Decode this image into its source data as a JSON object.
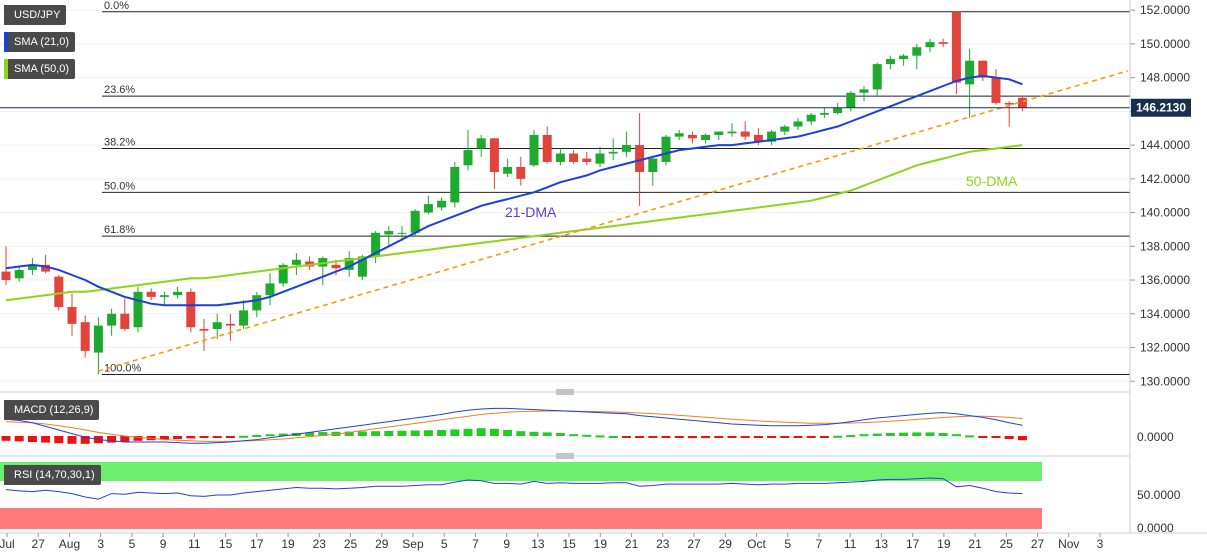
{
  "legend": {
    "symbol": "USD/JPY",
    "sma21": "SMA (21,0)",
    "sma50": "SMA (50,0)",
    "macd": "MACD (12,26,9)",
    "rsi": "RSI (14,70,30,1)"
  },
  "colors": {
    "bull": "#1eaa2e",
    "bear": "#e0443c",
    "sma21": "#1f3fdc",
    "sma50": "#8fd41a",
    "trend": "#f39c12",
    "macd_line": "#2040e0",
    "signal_line": "#f08020",
    "hist_pos": "#22cc22",
    "hist_neg": "#ee1111",
    "rsi_line": "#2040e0",
    "rsi_over": "#6cf06c",
    "rsi_under": "#ff7b7b"
  },
  "chart_data": {
    "type": "candlestick",
    "symbol": "USD/JPY",
    "price_axis": {
      "ylim": [
        129.6,
        152.6
      ],
      "ticks": [
        "152.0000",
        "150.0000",
        "148.0000",
        "146.0000",
        "144.0000",
        "142.0000",
        "140.0000",
        "138.0000",
        "136.0000",
        "134.0000",
        "132.0000",
        "130.0000"
      ]
    },
    "current_price": "146.2130",
    "x_tick_labels": [
      "Jul",
      "27",
      "Aug",
      "3",
      "5",
      "9",
      "11",
      "15",
      "17",
      "19",
      "23",
      "25",
      "29",
      "Sep",
      "5",
      "7",
      "9",
      "13",
      "15",
      "19",
      "21",
      "23",
      "27",
      "29",
      "Oct",
      "5",
      "7",
      "11",
      "13",
      "17",
      "19",
      "21",
      "25",
      "27",
      "Nov",
      "3"
    ],
    "candles": [
      {
        "o": 136.5,
        "h": 138.0,
        "l": 135.7,
        "c": 136.0
      },
      {
        "o": 136.1,
        "h": 136.8,
        "l": 135.9,
        "c": 136.6
      },
      {
        "o": 136.6,
        "h": 137.3,
        "l": 136.3,
        "c": 136.9
      },
      {
        "o": 136.9,
        "h": 137.5,
        "l": 136.4,
        "c": 136.5
      },
      {
        "o": 136.2,
        "h": 136.3,
        "l": 134.2,
        "c": 134.4
      },
      {
        "o": 134.4,
        "h": 135.2,
        "l": 132.7,
        "c": 133.4
      },
      {
        "o": 133.5,
        "h": 133.9,
        "l": 131.4,
        "c": 131.8
      },
      {
        "o": 131.7,
        "h": 133.8,
        "l": 130.4,
        "c": 133.3
      },
      {
        "o": 133.3,
        "h": 134.3,
        "l": 132.7,
        "c": 134.0
      },
      {
        "o": 134.0,
        "h": 134.9,
        "l": 133.0,
        "c": 133.1
      },
      {
        "o": 133.2,
        "h": 135.6,
        "l": 132.9,
        "c": 135.3
      },
      {
        "o": 135.3,
        "h": 135.5,
        "l": 134.8,
        "c": 135.0
      },
      {
        "o": 135.0,
        "h": 135.3,
        "l": 134.5,
        "c": 135.1
      },
      {
        "o": 135.1,
        "h": 135.6,
        "l": 134.9,
        "c": 135.3
      },
      {
        "o": 135.3,
        "h": 135.5,
        "l": 132.9,
        "c": 133.2
      },
      {
        "o": 133.1,
        "h": 133.7,
        "l": 131.8,
        "c": 133.0
      },
      {
        "o": 133.1,
        "h": 134.0,
        "l": 132.5,
        "c": 133.5
      },
      {
        "o": 133.4,
        "h": 134.0,
        "l": 132.4,
        "c": 133.3
      },
      {
        "o": 133.3,
        "h": 134.8,
        "l": 133.1,
        "c": 134.2
      },
      {
        "o": 134.2,
        "h": 135.3,
        "l": 133.8,
        "c": 135.1
      },
      {
        "o": 135.1,
        "h": 136.4,
        "l": 134.5,
        "c": 135.8
      },
      {
        "o": 135.8,
        "h": 137.0,
        "l": 135.6,
        "c": 136.9
      },
      {
        "o": 136.9,
        "h": 137.6,
        "l": 136.3,
        "c": 137.2
      },
      {
        "o": 137.1,
        "h": 137.4,
        "l": 136.6,
        "c": 136.8
      },
      {
        "o": 136.8,
        "h": 137.4,
        "l": 135.7,
        "c": 137.3
      },
      {
        "o": 136.9,
        "h": 137.2,
        "l": 136.3,
        "c": 136.7
      },
      {
        "o": 136.6,
        "h": 137.7,
        "l": 136.2,
        "c": 137.3
      },
      {
        "o": 136.2,
        "h": 137.5,
        "l": 136.0,
        "c": 137.4
      },
      {
        "o": 137.4,
        "h": 138.9,
        "l": 137.0,
        "c": 138.8
      },
      {
        "o": 138.7,
        "h": 139.2,
        "l": 138.0,
        "c": 138.9
      },
      {
        "o": 138.8,
        "h": 139.2,
        "l": 138.3,
        "c": 138.8
      },
      {
        "o": 138.8,
        "h": 140.2,
        "l": 138.6,
        "c": 140.1
      },
      {
        "o": 140.0,
        "h": 141.0,
        "l": 139.9,
        "c": 140.5
      },
      {
        "o": 140.3,
        "h": 140.9,
        "l": 140.1,
        "c": 140.7
      },
      {
        "o": 140.6,
        "h": 143.0,
        "l": 140.3,
        "c": 142.7
      },
      {
        "o": 142.8,
        "h": 144.9,
        "l": 142.5,
        "c": 143.7
      },
      {
        "o": 143.8,
        "h": 144.6,
        "l": 143.3,
        "c": 144.4
      },
      {
        "o": 144.4,
        "h": 144.4,
        "l": 141.4,
        "c": 142.4
      },
      {
        "o": 142.3,
        "h": 143.2,
        "l": 142.1,
        "c": 142.7
      },
      {
        "o": 142.7,
        "h": 143.3,
        "l": 141.6,
        "c": 142.0
      },
      {
        "o": 142.8,
        "h": 144.9,
        "l": 142.7,
        "c": 144.6
      },
      {
        "o": 144.6,
        "h": 145.1,
        "l": 142.9,
        "c": 143.0
      },
      {
        "o": 143.0,
        "h": 143.8,
        "l": 142.8,
        "c": 143.5
      },
      {
        "o": 143.5,
        "h": 143.7,
        "l": 142.9,
        "c": 143.0
      },
      {
        "o": 143.2,
        "h": 143.6,
        "l": 142.8,
        "c": 143.0
      },
      {
        "o": 142.9,
        "h": 143.9,
        "l": 142.7,
        "c": 143.5
      },
      {
        "o": 143.5,
        "h": 144.4,
        "l": 143.1,
        "c": 143.6
      },
      {
        "o": 143.6,
        "h": 144.8,
        "l": 143.3,
        "c": 144.0
      },
      {
        "o": 144.0,
        "h": 145.9,
        "l": 140.4,
        "c": 142.4
      },
      {
        "o": 142.4,
        "h": 143.3,
        "l": 141.6,
        "c": 143.2
      },
      {
        "o": 143.0,
        "h": 144.6,
        "l": 142.8,
        "c": 144.5
      },
      {
        "o": 144.5,
        "h": 144.9,
        "l": 144.3,
        "c": 144.7
      },
      {
        "o": 144.6,
        "h": 144.8,
        "l": 144.1,
        "c": 144.4
      },
      {
        "o": 144.3,
        "h": 144.7,
        "l": 144.1,
        "c": 144.6
      },
      {
        "o": 144.6,
        "h": 144.8,
        "l": 144.3,
        "c": 144.8
      },
      {
        "o": 144.7,
        "h": 145.3,
        "l": 144.5,
        "c": 144.8
      },
      {
        "o": 144.8,
        "h": 145.4,
        "l": 144.3,
        "c": 144.5
      },
      {
        "o": 144.6,
        "h": 145.0,
        "l": 144.0,
        "c": 144.2
      },
      {
        "o": 144.2,
        "h": 144.9,
        "l": 144.0,
        "c": 144.8
      },
      {
        "o": 144.8,
        "h": 145.2,
        "l": 144.6,
        "c": 145.1
      },
      {
        "o": 145.1,
        "h": 145.6,
        "l": 144.9,
        "c": 145.4
      },
      {
        "o": 145.4,
        "h": 145.9,
        "l": 145.2,
        "c": 145.8
      },
      {
        "o": 145.8,
        "h": 146.2,
        "l": 145.6,
        "c": 145.9
      },
      {
        "o": 145.9,
        "h": 146.5,
        "l": 145.8,
        "c": 146.2
      },
      {
        "o": 146.2,
        "h": 147.2,
        "l": 146.0,
        "c": 147.1
      },
      {
        "o": 147.1,
        "h": 147.5,
        "l": 146.6,
        "c": 147.3
      },
      {
        "o": 147.3,
        "h": 148.9,
        "l": 146.9,
        "c": 148.8
      },
      {
        "o": 148.8,
        "h": 149.3,
        "l": 148.5,
        "c": 149.1
      },
      {
        "o": 149.1,
        "h": 149.4,
        "l": 148.7,
        "c": 149.3
      },
      {
        "o": 149.3,
        "h": 150.0,
        "l": 148.5,
        "c": 149.8
      },
      {
        "o": 149.8,
        "h": 150.3,
        "l": 149.5,
        "c": 150.1
      },
      {
        "o": 150.1,
        "h": 150.3,
        "l": 149.8,
        "c": 150.0
      },
      {
        "o": 151.9,
        "h": 151.9,
        "l": 147.0,
        "c": 147.7
      },
      {
        "o": 147.6,
        "h": 149.7,
        "l": 145.6,
        "c": 149.0
      },
      {
        "o": 149.0,
        "h": 149.0,
        "l": 147.8,
        "c": 148.0
      },
      {
        "o": 148.0,
        "h": 148.5,
        "l": 146.4,
        "c": 146.5
      },
      {
        "o": 146.5,
        "h": 146.6,
        "l": 145.1,
        "c": 146.4
      },
      {
        "o": 146.8,
        "h": 146.9,
        "l": 146.0,
        "c": 146.2
      }
    ],
    "sma21": [
      136.7,
      136.8,
      136.9,
      136.8,
      136.6,
      136.3,
      136.0,
      135.6,
      135.3,
      135.0,
      134.8,
      134.6,
      134.5,
      134.5,
      134.5,
      134.5,
      134.5,
      134.6,
      134.7,
      134.8,
      135.0,
      135.3,
      135.6,
      135.9,
      136.2,
      136.5,
      136.8,
      137.2,
      137.6,
      138.0,
      138.4,
      138.8,
      139.2,
      139.5,
      139.8,
      140.1,
      140.4,
      140.6,
      140.8,
      141.0,
      141.2,
      141.5,
      141.8,
      142.0,
      142.2,
      142.5,
      142.7,
      142.9,
      143.1,
      143.3,
      143.5,
      143.7,
      143.8,
      143.9,
      144.0,
      144.0,
      144.1,
      144.2,
      144.3,
      144.4,
      144.5,
      144.7,
      144.9,
      145.1,
      145.4,
      145.7,
      146.0,
      146.3,
      146.6,
      146.9,
      147.2,
      147.5,
      147.8,
      148.0,
      148.1,
      148.0,
      147.9,
      147.6
    ],
    "sma50": [
      134.8,
      134.9,
      135.0,
      135.1,
      135.2,
      135.3,
      135.3,
      135.4,
      135.5,
      135.6,
      135.7,
      135.8,
      135.9,
      136.0,
      136.1,
      136.1,
      136.2,
      136.3,
      136.4,
      136.5,
      136.6,
      136.7,
      136.8,
      136.9,
      137.0,
      137.1,
      137.2,
      137.3,
      137.4,
      137.5,
      137.6,
      137.7,
      137.8,
      137.9,
      138.0,
      138.1,
      138.2,
      138.3,
      138.4,
      138.5,
      138.6,
      138.7,
      138.8,
      138.9,
      139.0,
      139.1,
      139.2,
      139.3,
      139.4,
      139.5,
      139.6,
      139.7,
      139.8,
      139.9,
      140.0,
      140.1,
      140.2,
      140.3,
      140.4,
      140.5,
      140.6,
      140.7,
      140.9,
      141.1,
      141.3,
      141.6,
      141.9,
      142.2,
      142.5,
      142.8,
      143.0,
      143.2,
      143.4,
      143.6,
      143.7,
      143.8,
      143.9,
      144.0
    ],
    "fibonacci": [
      {
        "label": "0.0%",
        "price": 151.9
      },
      {
        "label": "23.6%",
        "price": 146.9
      },
      {
        "label": "38.2%",
        "price": 143.8
      },
      {
        "label": "50.0%",
        "price": 141.2
      },
      {
        "label": "61.8%",
        "price": 138.6
      },
      {
        "label": "100.0%",
        "price": 130.4
      }
    ],
    "trendline": {
      "from_index": 7,
      "from_price": 130.6,
      "to_index": 85,
      "to_price": 148.4
    },
    "annotations": {
      "sma21_label": "21-DMA",
      "sma50_label": "50-DMA"
    },
    "macd": {
      "axis_label": "0.0000",
      "macd": [
        1.4,
        1.3,
        1.1,
        0.8,
        0.5,
        0.2,
        -0.1,
        -0.3,
        -0.4,
        -0.5,
        -0.5,
        -0.5,
        -0.5,
        -0.55,
        -0.6,
        -0.6,
        -0.55,
        -0.5,
        -0.4,
        -0.3,
        -0.15,
        0,
        0.15,
        0.3,
        0.45,
        0.6,
        0.75,
        0.9,
        1.05,
        1.2,
        1.35,
        1.5,
        1.65,
        1.8,
        2.0,
        2.15,
        2.25,
        2.3,
        2.3,
        2.25,
        2.2,
        2.15,
        2.1,
        2.05,
        2.0,
        1.95,
        1.9,
        1.85,
        1.7,
        1.6,
        1.5,
        1.4,
        1.3,
        1.2,
        1.1,
        1.0,
        0.95,
        0.9,
        0.85,
        0.85,
        0.85,
        0.9,
        0.95,
        1.05,
        1.2,
        1.35,
        1.5,
        1.6,
        1.7,
        1.8,
        1.9,
        1.95,
        1.85,
        1.7,
        1.55,
        1.35,
        1.1,
        0.9
      ],
      "signal": [
        1.2,
        1.15,
        1.1,
        1.0,
        0.85,
        0.7,
        0.5,
        0.3,
        0.15,
        0,
        -0.1,
        -0.2,
        -0.3,
        -0.35,
        -0.4,
        -0.45,
        -0.45,
        -0.45,
        -0.42,
        -0.38,
        -0.32,
        -0.25,
        -0.15,
        -0.05,
        0.05,
        0.15,
        0.3,
        0.45,
        0.6,
        0.75,
        0.9,
        1.05,
        1.2,
        1.35,
        1.5,
        1.65,
        1.8,
        1.9,
        1.98,
        2.03,
        2.06,
        2.08,
        2.08,
        2.07,
        2.05,
        2.03,
        2.0,
        1.97,
        1.92,
        1.87,
        1.8,
        1.72,
        1.64,
        1.56,
        1.48,
        1.4,
        1.33,
        1.26,
        1.2,
        1.15,
        1.1,
        1.07,
        1.06,
        1.06,
        1.08,
        1.12,
        1.17,
        1.23,
        1.3,
        1.38,
        1.46,
        1.54,
        1.6,
        1.64,
        1.65,
        1.62,
        1.55,
        1.45
      ],
      "histogram": [
        -0.4,
        -0.45,
        -0.5,
        -0.55,
        -0.6,
        -0.65,
        -0.65,
        -0.6,
        -0.55,
        -0.5,
        -0.4,
        -0.35,
        -0.3,
        -0.25,
        -0.2,
        -0.15,
        -0.1,
        -0.05,
        0.02,
        0.08,
        0.15,
        0.2,
        0.25,
        0.3,
        0.33,
        0.35,
        0.37,
        0.38,
        0.4,
        0.42,
        0.44,
        0.46,
        0.48,
        0.5,
        0.55,
        0.6,
        0.65,
        0.6,
        0.5,
        0.4,
        0.35,
        0.3,
        0.25,
        0.15,
        0.1,
        0.05,
        0,
        -0.02,
        -0.08,
        -0.12,
        -0.15,
        -0.17,
        -0.18,
        -0.18,
        -0.17,
        -0.16,
        -0.15,
        -0.14,
        -0.12,
        -0.1,
        -0.08,
        -0.05,
        -0.02,
        0.02,
        0.08,
        0.15,
        0.2,
        0.25,
        0.28,
        0.3,
        0.3,
        0.25,
        0.15,
        0.05,
        -0.05,
        -0.15,
        -0.25,
        -0.35
      ]
    },
    "rsi": {
      "axis_labels": [
        "50.0000",
        "0.0000"
      ],
      "overbought": 70,
      "oversold": 30,
      "values": [
        58,
        56,
        55,
        57,
        55,
        52,
        47,
        44,
        52,
        51,
        54,
        53,
        52,
        53,
        49,
        48,
        50,
        50,
        53,
        55,
        57,
        59,
        61,
        60,
        60,
        59,
        60,
        61,
        63,
        63,
        63,
        64,
        65,
        65,
        69,
        72,
        71,
        67,
        67,
        66,
        70,
        67,
        68,
        67,
        67,
        67,
        68,
        68,
        63,
        64,
        66,
        66,
        66,
        66,
        66,
        67,
        66,
        65,
        66,
        66,
        67,
        67,
        67,
        68,
        69,
        70,
        72,
        73,
        73,
        74,
        75,
        74,
        62,
        64,
        60,
        55,
        53,
        52
      ]
    }
  }
}
